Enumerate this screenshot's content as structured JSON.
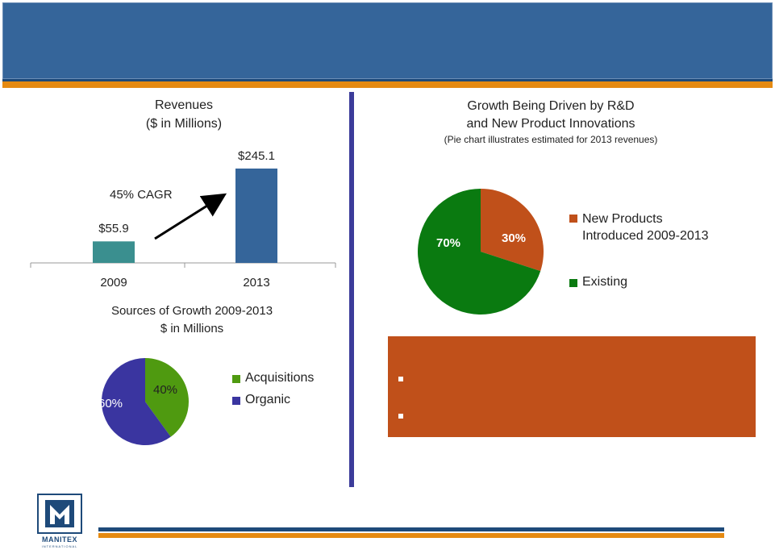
{
  "colors": {
    "header": "#35659a",
    "accent_orange": "#e58a12",
    "divider": "#3c3c9a",
    "callout": "#c0501a"
  },
  "chart_data": [
    {
      "id": "revenues",
      "type": "bar",
      "title": "Revenues",
      "subtitle": "($ in Millions)",
      "categories": [
        "2009",
        "2013"
      ],
      "values": [
        55.9,
        245.1
      ],
      "value_labels": [
        "$55.9",
        "$245.1"
      ],
      "colors": [
        "#3a8f8f",
        "#35659a"
      ],
      "annotation": "45% CAGR",
      "ylim": [
        0,
        300
      ],
      "xlabel": "",
      "ylabel": ""
    },
    {
      "id": "sources",
      "type": "pie",
      "title": "Sources of Growth 2009-2013",
      "subtitle": "$ in Millions",
      "slices": [
        {
          "label": "Acquisitions",
          "value": 40,
          "display": "40%",
          "color": "#4f9a10"
        },
        {
          "label": "Organic",
          "value": 60,
          "display": "60%",
          "color": "#3a35a0"
        }
      ],
      "legend_position": "right"
    },
    {
      "id": "innovation",
      "type": "pie",
      "title_line1": "Growth Being Driven by R&D",
      "title_line2": "and New Product Innovations",
      "note": "(Pie chart illustrates estimated for 2013 revenues)",
      "slices": [
        {
          "label": "New Products Introduced 2009-2013",
          "label_line1": "New Products",
          "label_line2": "Introduced 2009-2013",
          "value": 30,
          "display": "30%",
          "color": "#c0501a"
        },
        {
          "label": "Existing",
          "value": 70,
          "display": "70%",
          "color": "#0a7a10"
        }
      ],
      "legend_position": "right"
    }
  ],
  "logo": {
    "word": "MANITEX",
    "sub": "INTERNATIONAL"
  }
}
